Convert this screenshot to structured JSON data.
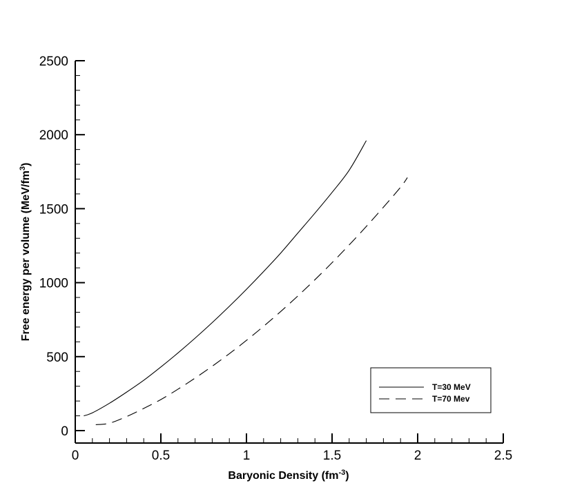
{
  "chart_data": {
    "type": "line",
    "xlabel": "Baryonic Density (fm",
    "xlabel_sup": "-3",
    "xlabel_end": ")",
    "ylabel": "Free energy per volume (MeV/fm",
    "ylabel_sup": "3",
    "ylabel_end": ")",
    "xlim": [
      0,
      2.5
    ],
    "ylim": [
      -90,
      2500
    ],
    "x_major_ticks": [
      0,
      0.5,
      1,
      1.5,
      2,
      2.5
    ],
    "x_tick_labels": [
      "0",
      "0.5",
      "1",
      "1.5",
      "2",
      "2.5"
    ],
    "y_major_ticks": [
      0,
      500,
      1000,
      1500,
      2000,
      2500
    ],
    "y_tick_labels": [
      "0",
      "500",
      "1000",
      "1500",
      "2000",
      "2500"
    ],
    "grid": false,
    "legend_position": "bottom-right",
    "series": [
      {
        "name": "T=30 MeV",
        "style": "solid",
        "color": "#000000",
        "x": [
          0.05,
          0.1,
          0.2,
          0.3,
          0.4,
          0.5,
          0.6,
          0.7,
          0.8,
          0.9,
          1.0,
          1.1,
          1.2,
          1.3,
          1.4,
          1.5,
          1.6,
          1.7
        ],
        "y": [
          100,
          120,
          185,
          260,
          340,
          430,
          525,
          625,
          730,
          840,
          955,
          1075,
          1200,
          1335,
          1470,
          1610,
          1760,
          1960
        ]
      },
      {
        "name": "T=70 Mev",
        "style": "dashed",
        "color": "#000000",
        "x": [
          0.12,
          0.2,
          0.3,
          0.4,
          0.5,
          0.6,
          0.7,
          0.8,
          0.9,
          1.0,
          1.1,
          1.2,
          1.3,
          1.4,
          1.5,
          1.6,
          1.7,
          1.8,
          1.9,
          1.94
        ],
        "y": [
          40,
          50,
          95,
          150,
          210,
          280,
          355,
          435,
          520,
          610,
          705,
          805,
          910,
          1020,
          1135,
          1255,
          1380,
          1510,
          1645,
          1710
        ]
      }
    ]
  }
}
